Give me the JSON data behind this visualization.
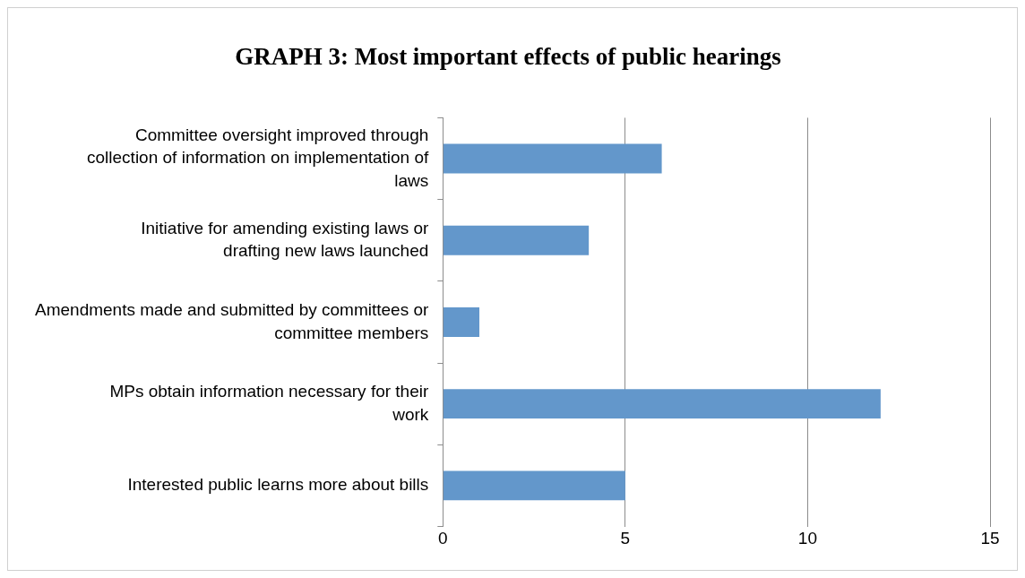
{
  "chart_data": {
    "type": "bar",
    "orientation": "horizontal",
    "title": "GRAPH 3: Most important effects of public hearings",
    "categories": [
      "Committee oversight improved through collection of information on implementation of laws",
      "Initiative for amending existing laws or drafting new laws launched",
      "Amendments made and submitted by committees or committee members",
      "MPs obtain information necessary for their work",
      "Interested public learns more about bills"
    ],
    "values": [
      6,
      4,
      1,
      12,
      5
    ],
    "color": "#6397cb",
    "xlim": [
      0,
      15
    ],
    "xticks": [
      0,
      5,
      10,
      15
    ],
    "grid": "x",
    "legend": false
  }
}
